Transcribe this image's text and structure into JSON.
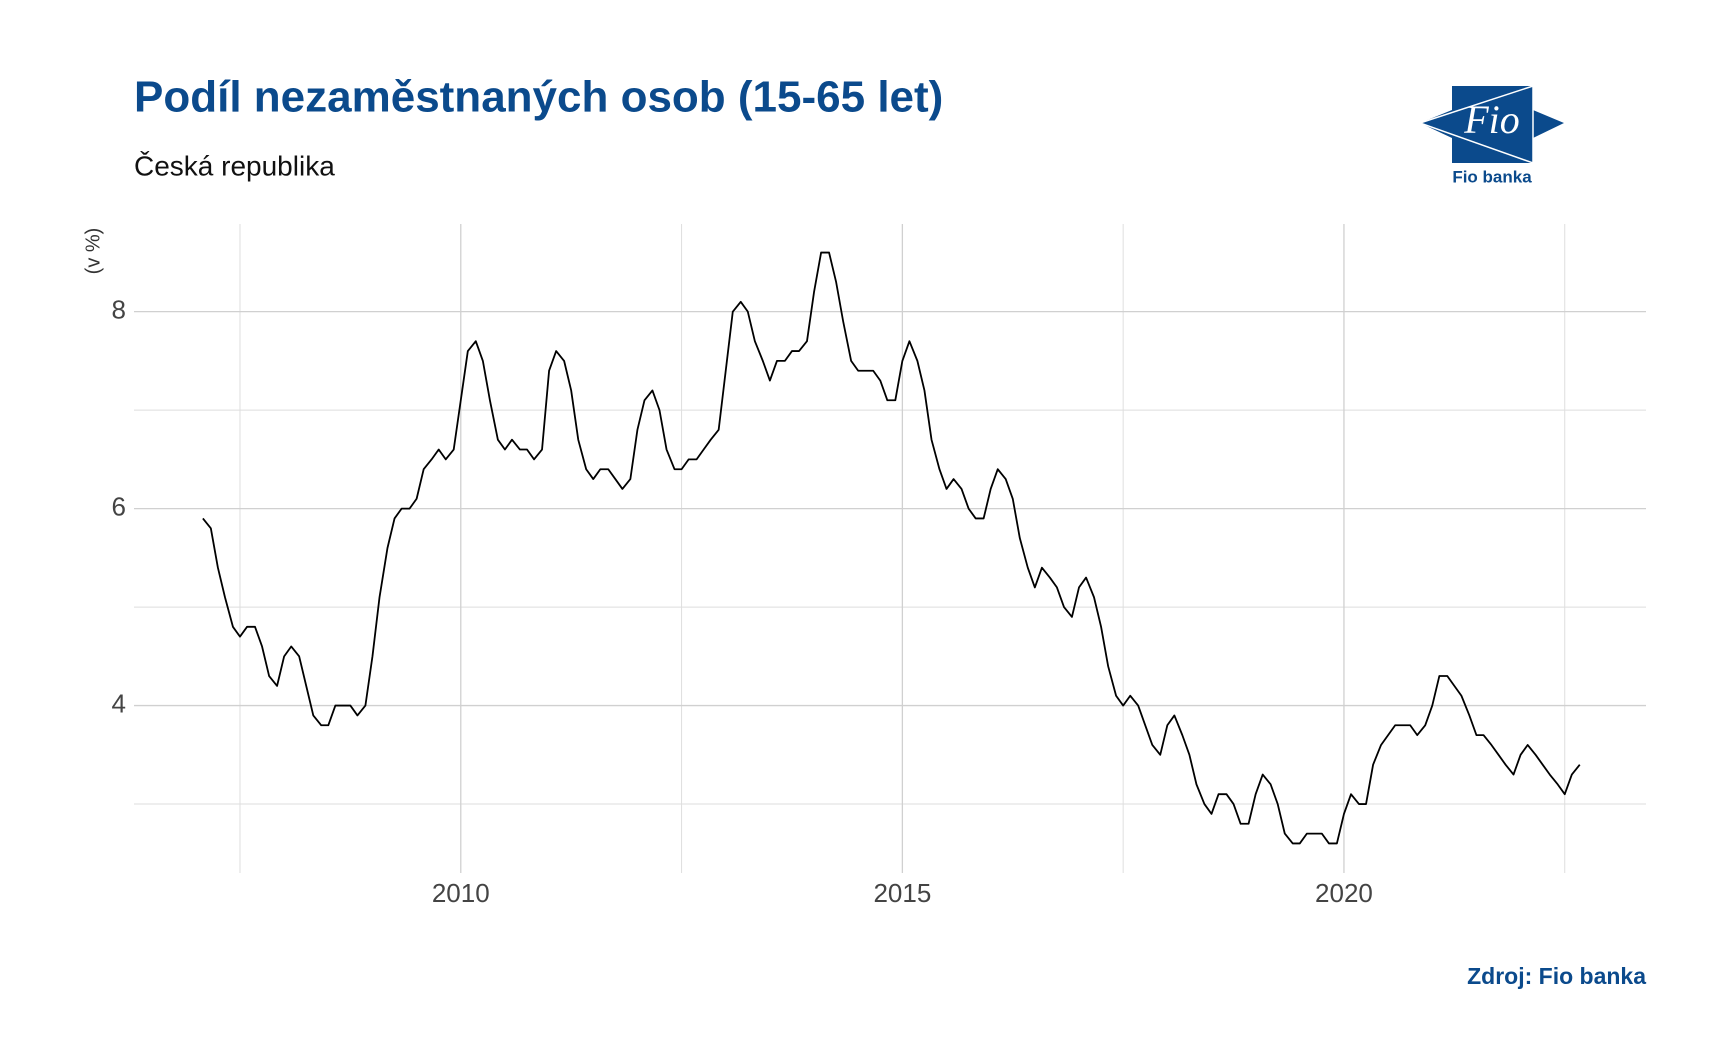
{
  "chart_data": {
    "type": "line",
    "title": "Podíl nezaměstnaných osob (15-65 let)",
    "subtitle": "Česká republika",
    "ylabel": "(v %)",
    "caption": "Zdroj: Fio banka",
    "xlim": [
      2006.3,
      2023.42
    ],
    "ylim": [
      2.3,
      8.89
    ],
    "xticks": [
      2010,
      2015,
      2020
    ],
    "yticks": [
      4,
      6,
      8
    ],
    "xminor": [
      2007.5,
      2012.5,
      2017.5,
      2022.5
    ],
    "yminor": [
      3,
      5,
      7
    ],
    "grid": true,
    "series": [
      {
        "color": "#000000",
        "x": [
          2007.08,
          2007.17,
          2007.25,
          2007.33,
          2007.42,
          2007.5,
          2007.58,
          2007.67,
          2007.75,
          2007.83,
          2007.92,
          2008,
          2008.08,
          2008.17,
          2008.25,
          2008.33,
          2008.42,
          2008.5,
          2008.58,
          2008.67,
          2008.75,
          2008.83,
          2008.92,
          2009,
          2009.08,
          2009.17,
          2009.25,
          2009.33,
          2009.42,
          2009.5,
          2009.58,
          2009.67,
          2009.75,
          2009.83,
          2009.92,
          2010,
          2010.08,
          2010.17,
          2010.25,
          2010.33,
          2010.42,
          2010.5,
          2010.58,
          2010.67,
          2010.75,
          2010.83,
          2010.92,
          2011,
          2011.08,
          2011.17,
          2011.25,
          2011.33,
          2011.42,
          2011.5,
          2011.58,
          2011.67,
          2011.75,
          2011.83,
          2011.92,
          2012,
          2012.08,
          2012.17,
          2012.25,
          2012.33,
          2012.42,
          2012.5,
          2012.58,
          2012.67,
          2012.75,
          2012.83,
          2012.92,
          2013,
          2013.08,
          2013.17,
          2013.25,
          2013.33,
          2013.42,
          2013.5,
          2013.58,
          2013.67,
          2013.75,
          2013.83,
          2013.92,
          2014,
          2014.08,
          2014.17,
          2014.25,
          2014.33,
          2014.42,
          2014.5,
          2014.58,
          2014.67,
          2014.75,
          2014.83,
          2014.92,
          2015,
          2015.08,
          2015.17,
          2015.25,
          2015.33,
          2015.42,
          2015.5,
          2015.58,
          2015.67,
          2015.75,
          2015.83,
          2015.92,
          2016,
          2016.08,
          2016.17,
          2016.25,
          2016.33,
          2016.42,
          2016.5,
          2016.58,
          2016.67,
          2016.75,
          2016.83,
          2016.92,
          2017,
          2017.08,
          2017.17,
          2017.25,
          2017.33,
          2017.42,
          2017.5,
          2017.58,
          2017.67,
          2017.75,
          2017.83,
          2017.92,
          2018,
          2018.08,
          2018.17,
          2018.25,
          2018.33,
          2018.42,
          2018.5,
          2018.58,
          2018.67,
          2018.75,
          2018.83,
          2018.92,
          2019,
          2019.08,
          2019.17,
          2019.25,
          2019.33,
          2019.42,
          2019.5,
          2019.58,
          2019.67,
          2019.75,
          2019.83,
          2019.92,
          2020,
          2020.08,
          2020.17,
          2020.25,
          2020.33,
          2020.42,
          2020.5,
          2020.58,
          2020.67,
          2020.75,
          2020.83,
          2020.92,
          2021,
          2021.08,
          2021.17,
          2021.25,
          2021.33,
          2021.42,
          2021.5,
          2021.58,
          2021.67,
          2021.75,
          2021.83,
          2021.92,
          2022,
          2022.08,
          2022.17,
          2022.25,
          2022.33,
          2022.42,
          2022.5,
          2022.58,
          2022.67
        ],
        "values": [
          5.9,
          5.8,
          5.4,
          5.1,
          4.8,
          4.7,
          4.8,
          4.8,
          4.6,
          4.3,
          4.2,
          4.5,
          4.6,
          4.5,
          4.2,
          3.9,
          3.8,
          3.8,
          4.0,
          4.0,
          4.0,
          3.9,
          4.0,
          4.5,
          5.1,
          5.6,
          5.9,
          6.0,
          6.0,
          6.1,
          6.4,
          6.5,
          6.6,
          6.5,
          6.6,
          7.1,
          7.6,
          7.7,
          7.5,
          7.1,
          6.7,
          6.6,
          6.7,
          6.6,
          6.6,
          6.5,
          6.6,
          7.4,
          7.6,
          7.5,
          7.2,
          6.7,
          6.4,
          6.3,
          6.4,
          6.4,
          6.3,
          6.2,
          6.3,
          6.8,
          7.1,
          7.2,
          7.0,
          6.6,
          6.4,
          6.4,
          6.5,
          6.5,
          6.6,
          6.7,
          6.8,
          7.4,
          8.0,
          8.1,
          8.0,
          7.7,
          7.5,
          7.3,
          7.5,
          7.5,
          7.6,
          7.6,
          7.7,
          8.2,
          8.6,
          8.6,
          8.3,
          7.9,
          7.5,
          7.4,
          7.4,
          7.4,
          7.3,
          7.1,
          7.1,
          7.5,
          7.7,
          7.5,
          7.2,
          6.7,
          6.4,
          6.2,
          6.3,
          6.2,
          6.0,
          5.9,
          5.9,
          6.2,
          6.4,
          6.3,
          6.1,
          5.7,
          5.4,
          5.2,
          5.4,
          5.3,
          5.2,
          5.0,
          4.9,
          5.2,
          5.3,
          5.1,
          4.8,
          4.4,
          4.1,
          4.0,
          4.1,
          4.0,
          3.8,
          3.6,
          3.5,
          3.8,
          3.9,
          3.7,
          3.5,
          3.2,
          3.0,
          2.9,
          3.1,
          3.1,
          3.0,
          2.8,
          2.8,
          3.1,
          3.3,
          3.2,
          3.0,
          2.7,
          2.6,
          2.6,
          2.7,
          2.7,
          2.7,
          2.6,
          2.6,
          2.9,
          3.1,
          3.0,
          3.0,
          3.4,
          3.6,
          3.7,
          3.8,
          3.8,
          3.8,
          3.7,
          3.8,
          4.0,
          4.3,
          4.3,
          4.2,
          4.1,
          3.9,
          3.7,
          3.7,
          3.6,
          3.5,
          3.4,
          3.3,
          3.5,
          3.6,
          3.5,
          3.4,
          3.3,
          3.2,
          3.1,
          3.3,
          3.4
        ]
      }
    ]
  },
  "logo": {
    "text": "Fio",
    "caption": "Fio banka"
  }
}
